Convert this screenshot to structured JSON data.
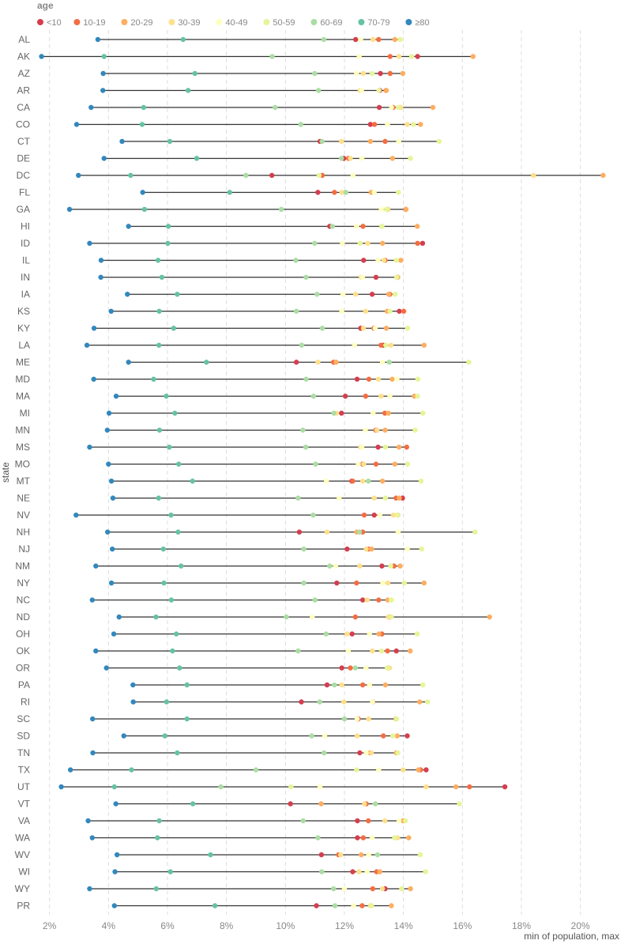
{
  "chart_data": {
    "type": "dot-range",
    "title": "",
    "xlabel": "min of population, max",
    "ylabel": "state",
    "xlim": [
      0.015,
      0.21
    ],
    "x_ticks": [
      0.02,
      0.04,
      0.06,
      0.08,
      0.1,
      0.12,
      0.14,
      0.16,
      0.18,
      0.2
    ],
    "x_tick_labels": [
      "2%",
      "4%",
      "6%",
      "8%",
      "10%",
      "12%",
      "14%",
      "16%",
      "18%",
      "20%"
    ],
    "grid": "vertical dashed",
    "legend": {
      "title": "age",
      "placement": "top-left",
      "entries": [
        {
          "label": "<10",
          "color": "#d53e4f"
        },
        {
          "label": "10-19",
          "color": "#f46d43"
        },
        {
          "label": "20-29",
          "color": "#fdae61"
        },
        {
          "label": "30-39",
          "color": "#fee08b"
        },
        {
          "label": "40-49",
          "color": "#ffffbf"
        },
        {
          "label": "50-59",
          "color": "#e6f598"
        },
        {
          "label": "60-69",
          "color": "#abdda4"
        },
        {
          "label": "70-79",
          "color": "#66c2a5"
        },
        {
          "label": "≥80",
          "color": "#3288bd"
        }
      ]
    },
    "series_order": [
      "<10",
      "10-19",
      "20-29",
      "30-39",
      "40-49",
      "50-59",
      "60-69",
      "70-79",
      "≥80"
    ],
    "states": [
      {
        "state": "AL",
        "values": [
          0.1238,
          0.1316,
          0.1371,
          0.1297,
          0.1255,
          0.1389,
          0.113,
          0.0653,
          0.0364
        ]
      },
      {
        "state": "AK",
        "values": [
          0.1448,
          0.1355,
          0.1636,
          0.1385,
          0.125,
          0.1428,
          0.0955,
          0.0385,
          0.0173
        ]
      },
      {
        "state": "AZ",
        "values": [
          0.1322,
          0.1355,
          0.1398,
          0.1264,
          0.1241,
          0.1294,
          0.1099,
          0.0693,
          0.0382
        ]
      },
      {
        "state": "AR",
        "values": [
          0.132,
          0.1341,
          0.1342,
          0.1253,
          0.1258,
          0.1317,
          0.1112,
          0.067,
          0.0381
        ]
      },
      {
        "state": "CA",
        "values": [
          0.1318,
          0.1365,
          0.15,
          0.1391,
          0.136,
          0.1383,
          0.0965,
          0.0519,
          0.0341
        ]
      },
      {
        "state": "CO",
        "values": [
          0.1288,
          0.1302,
          0.1458,
          0.1413,
          0.1346,
          0.1434,
          0.1052,
          0.0514,
          0.0292
        ]
      },
      {
        "state": "CT",
        "values": [
          0.1117,
          0.1338,
          0.1288,
          0.119,
          0.1384,
          0.1521,
          0.1124,
          0.0608,
          0.0446
        ]
      },
      {
        "state": "DE",
        "values": [
          0.1198,
          0.1214,
          0.1363,
          0.122,
          0.1259,
          0.1424,
          0.119,
          0.0699,
          0.0385
        ]
      },
      {
        "state": "DC",
        "values": [
          0.0954,
          0.1125,
          0.2077,
          0.1841,
          0.1229,
          0.1114,
          0.0866,
          0.0475,
          0.0298
        ]
      },
      {
        "state": "FL",
        "values": [
          0.111,
          0.1166,
          0.1291,
          0.1191,
          0.1301,
          0.1383,
          0.1205,
          0.0811,
          0.0516
        ]
      },
      {
        "state": "GA",
        "values": [
          0.1347,
          0.1408,
          0.1409,
          0.1347,
          0.1325,
          0.1343,
          0.0986,
          0.0522,
          0.0268
        ]
      },
      {
        "state": "HI",
        "values": [
          0.115,
          0.1263,
          0.1447,
          0.1327,
          0.1241,
          0.1327,
          0.1159,
          0.0603,
          0.0468
        ]
      },
      {
        "state": "ID",
        "values": [
          0.1465,
          0.1448,
          0.1329,
          0.1279,
          0.1193,
          0.1253,
          0.1099,
          0.0601,
          0.0336
        ]
      },
      {
        "state": "IL",
        "values": [
          0.1265,
          0.1338,
          0.1391,
          0.1334,
          0.1314,
          0.1376,
          0.1035,
          0.0568,
          0.0375
        ]
      },
      {
        "state": "IN",
        "values": [
          0.1307,
          0.1378,
          0.1381,
          0.1257,
          0.1261,
          0.1377,
          0.107,
          0.0581,
          0.0374
        ]
      },
      {
        "state": "IA",
        "values": [
          0.1294,
          0.1354,
          0.135,
          0.1238,
          0.1195,
          0.1372,
          0.1107,
          0.0633,
          0.0464
        ]
      },
      {
        "state": "KS",
        "values": [
          0.1386,
          0.1401,
          0.1345,
          0.1272,
          0.1191,
          0.1354,
          0.1037,
          0.0572,
          0.0409
        ]
      },
      {
        "state": "KY",
        "values": [
          0.1255,
          0.13,
          0.1342,
          0.1264,
          0.1304,
          0.1414,
          0.1125,
          0.0621,
          0.0351
        ]
      },
      {
        "state": "LA",
        "values": [
          0.1332,
          0.1324,
          0.147,
          0.1358,
          0.1234,
          0.134,
          0.1055,
          0.0571,
          0.0327
        ]
      },
      {
        "state": "ME",
        "values": [
          0.1037,
          0.1163,
          0.1172,
          0.111,
          0.1329,
          0.1622,
          0.1352,
          0.0732,
          0.0468
        ]
      },
      {
        "state": "MD",
        "values": [
          0.1243,
          0.1283,
          0.1362,
          0.1315,
          0.1378,
          0.1449,
          0.107,
          0.0553,
          0.035
        ]
      },
      {
        "state": "MA",
        "values": [
          0.1203,
          0.1272,
          0.1437,
          0.1324,
          0.1354,
          0.1448,
          0.1095,
          0.0596,
          0.0426
        ]
      },
      {
        "state": "MI",
        "values": [
          0.119,
          0.1337,
          0.1349,
          0.1173,
          0.1297,
          0.1466,
          0.1164,
          0.0625,
          0.0402
        ]
      },
      {
        "state": "MN",
        "values": [
          0.131,
          0.1306,
          0.1338,
          0.131,
          0.1271,
          0.144,
          0.1059,
          0.0573,
          0.0396
        ]
      },
      {
        "state": "MS",
        "values": [
          0.1314,
          0.1411,
          0.1385,
          0.1255,
          0.1259,
          0.1339,
          0.1069,
          0.0606,
          0.0336
        ]
      },
      {
        "state": "MO",
        "values": [
          0.1262,
          0.1307,
          0.1371,
          0.1265,
          0.1247,
          0.1414,
          0.1102,
          0.0638,
          0.04
        ]
      },
      {
        "state": "MT",
        "values": [
          0.1225,
          0.1228,
          0.1329,
          0.1262,
          0.1139,
          0.146,
          0.1281,
          0.0685,
          0.041
        ]
      },
      {
        "state": "NE",
        "values": [
          0.1397,
          0.1375,
          0.1386,
          0.1301,
          0.1182,
          0.1339,
          0.1043,
          0.057,
          0.0415
        ]
      },
      {
        "state": "NV",
        "values": [
          0.1301,
          0.1267,
          0.1381,
          0.1366,
          0.132,
          0.138,
          0.1094,
          0.0612,
          0.029
        ]
      },
      {
        "state": "NH",
        "values": [
          0.1047,
          0.1262,
          0.1242,
          0.1141,
          0.1382,
          0.1643,
          0.1251,
          0.0636,
          0.0397
        ]
      },
      {
        "state": "NJ",
        "values": [
          0.1209,
          0.1281,
          0.1292,
          0.1274,
          0.1413,
          0.1462,
          0.1062,
          0.0586,
          0.0413
        ]
      },
      {
        "state": "NM",
        "values": [
          0.1327,
          0.1368,
          0.1389,
          0.1252,
          0.117,
          0.1357,
          0.115,
          0.0646,
          0.0357
        ]
      },
      {
        "state": "NY",
        "values": [
          0.1174,
          0.1241,
          0.147,
          0.1347,
          0.133,
          0.1403,
          0.1062,
          0.0588,
          0.041
        ]
      },
      {
        "state": "NC",
        "values": [
          0.1262,
          0.1316,
          0.1347,
          0.1277,
          0.1362,
          0.1358,
          0.11,
          0.0613,
          0.0345
        ]
      },
      {
        "state": "ND",
        "values": [
          0.1355,
          0.1237,
          0.1692,
          0.1349,
          0.1091,
          0.1359,
          0.1003,
          0.0561,
          0.0436
        ]
      },
      {
        "state": "OH",
        "values": [
          0.1226,
          0.1327,
          0.1317,
          0.1209,
          0.1285,
          0.1447,
          0.1138,
          0.063,
          0.0418
        ]
      },
      {
        "state": "OK",
        "values": [
          0.1376,
          0.1346,
          0.1423,
          0.1295,
          0.1213,
          0.1326,
          0.1043,
          0.0617,
          0.0357
        ]
      },
      {
        "state": "OR",
        "values": [
          0.1191,
          0.122,
          0.1349,
          0.1353,
          0.1273,
          0.1345,
          0.1237,
          0.0641,
          0.0393
        ]
      },
      {
        "state": "PA",
        "values": [
          0.1141,
          0.1262,
          0.1339,
          0.1191,
          0.1285,
          0.1466,
          0.1166,
          0.0666,
          0.0483
        ]
      },
      {
        "state": "RI",
        "values": [
          0.1054,
          0.1296,
          0.1455,
          0.1198,
          0.1295,
          0.1482,
          0.1116,
          0.0597,
          0.0484
        ]
      },
      {
        "state": "SC",
        "values": [
          0.1244,
          0.1247,
          0.1375,
          0.1282,
          0.1243,
          0.1377,
          0.12,
          0.0666,
          0.0346
        ]
      },
      {
        "state": "SD",
        "values": [
          0.1413,
          0.1332,
          0.1379,
          0.1243,
          0.1133,
          0.1364,
          0.1089,
          0.0591,
          0.0452
        ]
      },
      {
        "state": "TN",
        "values": [
          0.1252,
          0.1288,
          0.1376,
          0.1291,
          0.1274,
          0.1381,
          0.1131,
          0.0633,
          0.0347
        ]
      },
      {
        "state": "TX",
        "values": [
          0.1477,
          0.1458,
          0.1451,
          0.1399,
          0.1316,
          0.1241,
          0.09,
          0.0478,
          0.0271
        ]
      },
      {
        "state": "UT",
        "values": [
          0.1744,
          0.1624,
          0.1578,
          0.1477,
          0.1117,
          0.1019,
          0.0781,
          0.042,
          0.024
        ]
      },
      {
        "state": "VT",
        "values": [
          0.1017,
          0.1274,
          0.1121,
          0.1268,
          0.1304,
          0.159,
          0.1305,
          0.0686,
          0.0425
        ]
      },
      {
        "state": "VA",
        "values": [
          0.1244,
          0.1281,
          0.1399,
          0.1337,
          0.1385,
          0.1407,
          0.106,
          0.0572,
          0.0331
        ]
      },
      {
        "state": "WA",
        "values": [
          0.1244,
          0.1264,
          0.1418,
          0.138,
          0.1294,
          0.137,
          0.111,
          0.0566,
          0.0345
        ]
      },
      {
        "state": "WV",
        "values": [
          0.1122,
          0.118,
          0.1257,
          0.1187,
          0.1282,
          0.1457,
          0.1312,
          0.0746,
          0.0429
        ]
      },
      {
        "state": "WI",
        "values": [
          0.1228,
          0.1309,
          0.132,
          0.1249,
          0.1277,
          0.1475,
          0.1123,
          0.061,
          0.0422
        ]
      },
      {
        "state": "WY",
        "values": [
          0.1338,
          0.1296,
          0.1424,
          0.1329,
          0.12,
          0.1394,
          0.1163,
          0.0562,
          0.0336
        ]
      },
      {
        "state": "PR",
        "values": [
          0.1105,
          0.126,
          0.1359,
          0.1288,
          0.1231,
          0.1292,
          0.1168,
          0.0761,
          0.042
        ]
      }
    ]
  }
}
